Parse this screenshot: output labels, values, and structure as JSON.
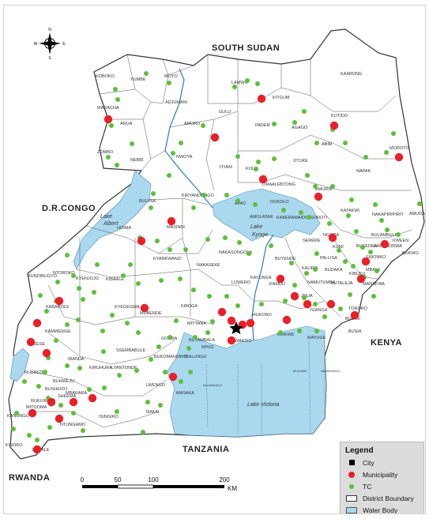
{
  "countries": {
    "south_sudan": "SOUTH SUDAN",
    "drc": "D.R.CONGO",
    "kenya": "KENYA",
    "tanzania": "TANZANIA",
    "rwanda": "RWANDA"
  },
  "water_bodies": {
    "lake_albert": [
      "Lake",
      "Albert"
    ],
    "lake_kyoga": [
      "Lake",
      "Kyoga"
    ],
    "lake_victoria": "Lake Victoria"
  },
  "compass": {
    "n": "N",
    "s": "S",
    "e": "E",
    "w": "W"
  },
  "scale": {
    "ticks": [
      "0",
      "50",
      "100",
      "200"
    ],
    "unit": "KM"
  },
  "legend": {
    "title": "Legend",
    "items": [
      "City",
      "Municipality",
      "TC",
      "District Boundary",
      "Water Body"
    ]
  },
  "colors": {
    "land": "#ffffff",
    "water": "#a9d8ef",
    "boundary": "#555555",
    "municipality": "#e8202a",
    "tc": "#5cbf3a",
    "city": "#000000",
    "legend_bg": "#dcdcdc"
  },
  "district_labels": [
    "KOBOKO",
    "YUMBE",
    "MOYO",
    "ADJUMANI",
    "MARACHA",
    "ARUA",
    "AMURU",
    "GULU",
    "ZOMBO",
    "NEBBI",
    "NWOYA",
    "LAMWO",
    "KITGUM",
    "KAABONG",
    "PADER",
    "AGAGO",
    "KOTIDO",
    "ABIM",
    "MOROTO",
    "NAPAK",
    "OYAM",
    "KOLE",
    "OTUKE",
    "LIRA",
    "ALEBTONG",
    "AMURIA",
    "KATAKWI",
    "NAKAPIRIPIRIT",
    "AMUDAT",
    "KIRYANDONGO",
    "BULIISA",
    "APAC",
    "DOKOLO",
    "KABERAMAIDO",
    "SOROTI",
    "MASINDI",
    "HOIMA",
    "AMOLATAR",
    "NGORA",
    "SERERE",
    "KUMI",
    "BULAMBULI",
    "KWEEN",
    "BUKEDEA",
    "KAPCHORWA",
    "BUKWO",
    "NAKASONGOLA",
    "BUYENDE",
    "PALLISA",
    "SIRONKO",
    "MBALE",
    "KYANKWANZI",
    "NAKASEKE",
    "KIBUKU",
    "KALIRO",
    "BUDAKA",
    "BUTALEJA",
    "MANAFWA",
    "NTOROKO",
    "KIBAALE",
    "LUWERO",
    "KAYUNGA",
    "KAMULI",
    "NAMUTUMBA",
    "BUNDIBUGYO",
    "KYENJOJO",
    "KYEGEGWA",
    "KIBOGA",
    "JINJA",
    "IGANGA",
    "TORORO",
    "KABAROLE",
    "MUBENDE",
    "MUKONO",
    "BUGIRI",
    "BUSIA",
    "KAMWENGE",
    "MITYANA",
    "BUTAMBALA",
    "MPIGI",
    "WAKISO",
    "BUIKWE",
    "MAYUGE",
    "KASESE",
    "GOMBA",
    "SSEMBABULE",
    "LYANTONDE",
    "KALUNGU",
    "BUKOMANSIMBI",
    "KIRUHURA",
    "LWENGO",
    "MASAKA",
    "KALANGALA",
    "RUBIRIZI",
    "IBANDA",
    "BUHWEJU",
    "BUSHENYI",
    "SHEEMA",
    "MBARARA",
    "MITOOMA",
    "RUKUNGIRI",
    "KANUNGU",
    "NTUNGAMO",
    "ISINGIRO",
    "RAKAI",
    "KISORO",
    "KABALE",
    "BUVUMA",
    "NAMAYINGO"
  ]
}
